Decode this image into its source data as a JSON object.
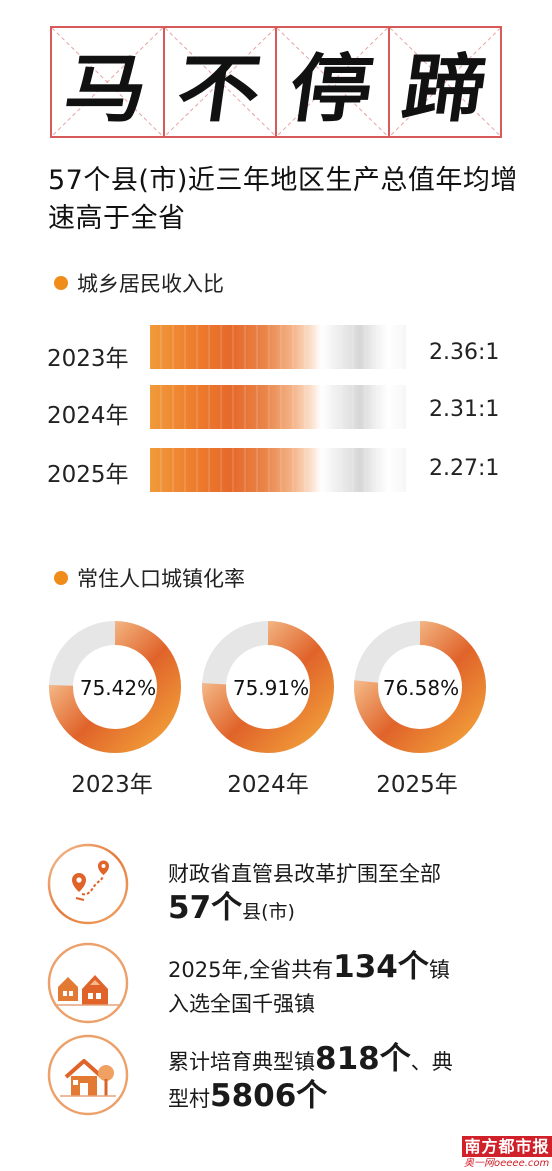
{
  "title_chars": [
    "马",
    "不",
    "停",
    "蹄"
  ],
  "subtitle": "57个县(市)近三年地区生产总值年均增速高于全省",
  "income_section": {
    "heading": "城乡居民收入比"
  },
  "urban_section": {
    "heading": "常住人口城镇化率"
  },
  "chart_data": [
    {
      "type": "bar",
      "title": "城乡居民收入比",
      "categories": [
        "2023年",
        "2024年",
        "2025年"
      ],
      "value_labels": [
        "2.36:1",
        "2.31:1",
        "2.27:1"
      ],
      "values": [
        2.36,
        2.31,
        2.27
      ]
    },
    {
      "type": "pie",
      "title": "常住人口城镇化率",
      "categories": [
        "2023年",
        "2024年",
        "2025年"
      ],
      "value_labels": [
        "75.42%",
        "75.91%",
        "76.58%"
      ],
      "values": [
        75.42,
        75.91,
        76.58
      ]
    }
  ],
  "facts": [
    {
      "icon": "location-route-icon",
      "line1": "财政省直管县改革扩围至全部",
      "big1": "57个",
      "small1": "县(市)"
    },
    {
      "icon": "town-houses-icon",
      "pre": "2025年,全省共有",
      "big": "134个",
      "post": "镇",
      "line2": "入选全国千强镇"
    },
    {
      "icon": "village-house-icon",
      "pre": "累计培育典型镇",
      "big1": "818个",
      "mid": "、典",
      "line2a": "型村",
      "big2": "5806个"
    }
  ],
  "logo": {
    "name": "南方都市报",
    "sub": "奥一网oeeee.com"
  },
  "colors": {
    "accent": "#ef8c1a",
    "deep": "#e0632a",
    "tile_border": "#d75a5a",
    "ring_gray": "#e6e6e6"
  }
}
